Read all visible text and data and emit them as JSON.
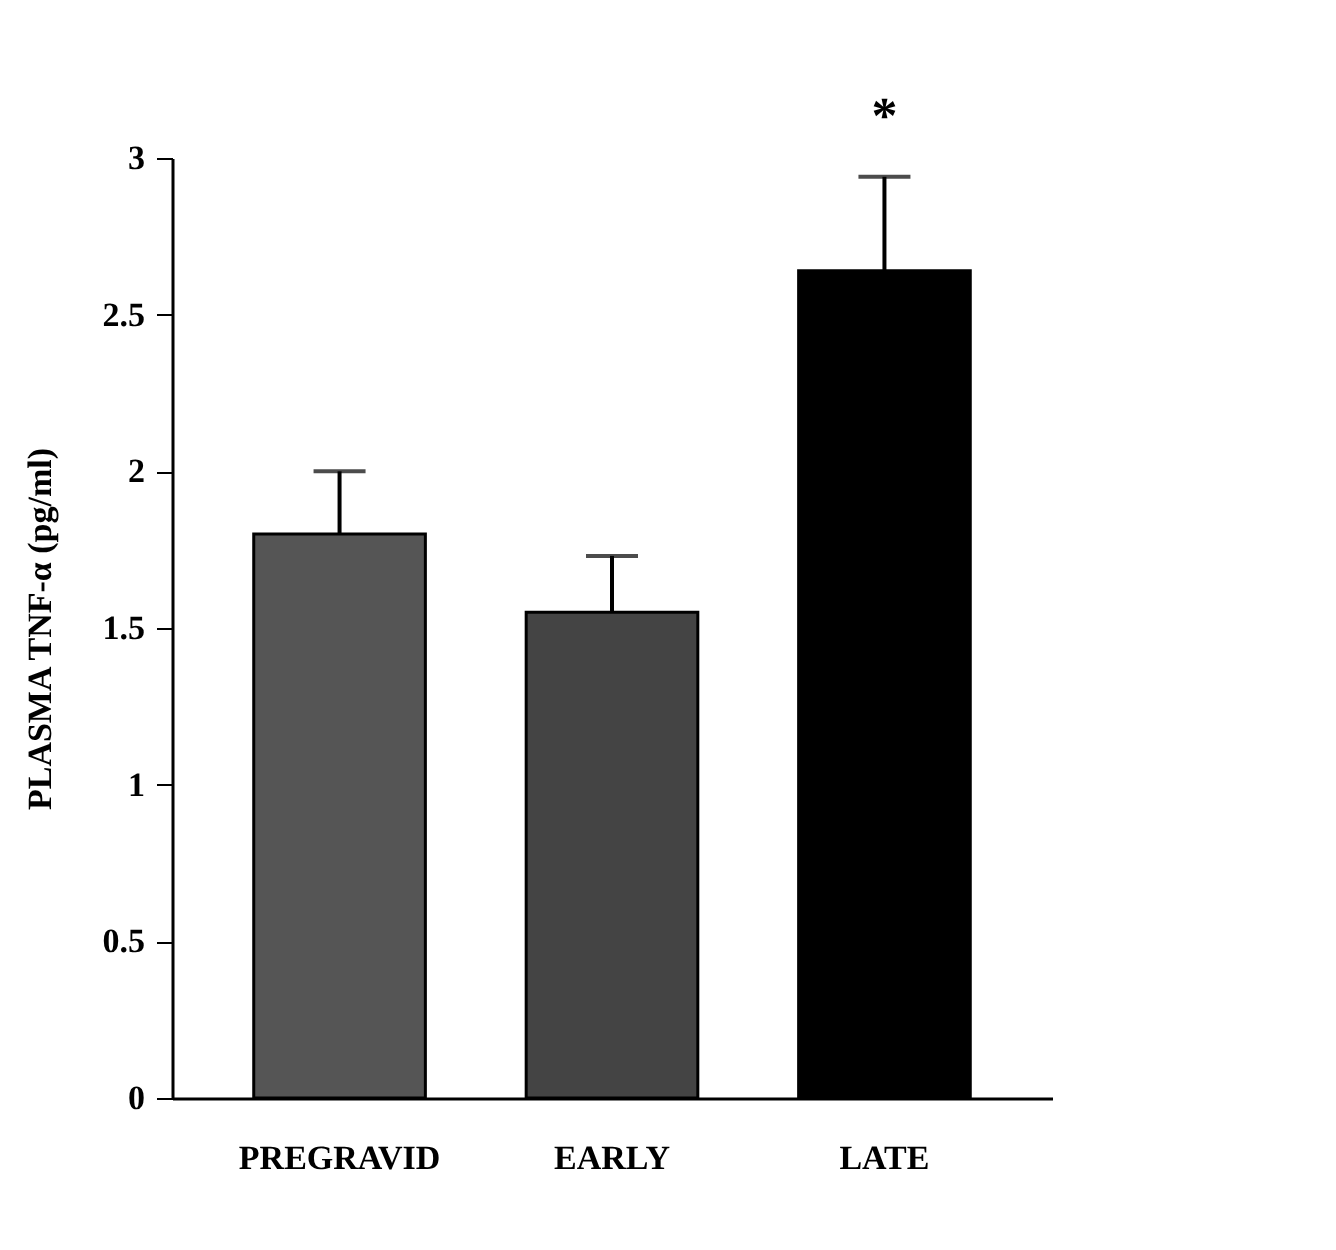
{
  "chart_data": {
    "type": "bar",
    "ylabel": "PLASMA TNF-α (pg/ml)",
    "categories": [
      "PREGRAVID",
      "EARLY",
      "LATE"
    ],
    "values": [
      1.8,
      1.55,
      2.64
    ],
    "colors": [
      "#555555",
      "#444444",
      "#000000"
    ],
    "errors": [
      [
        1.8,
        2.0
      ],
      [
        1.55,
        1.73
      ],
      [
        2.64,
        2.94
      ]
    ],
    "ylim": [
      0,
      3
    ],
    "yticks": [
      0,
      0.5,
      1,
      1.5,
      2,
      2.5,
      3
    ],
    "annotations": [
      "*"
    ],
    "grid": false
  }
}
